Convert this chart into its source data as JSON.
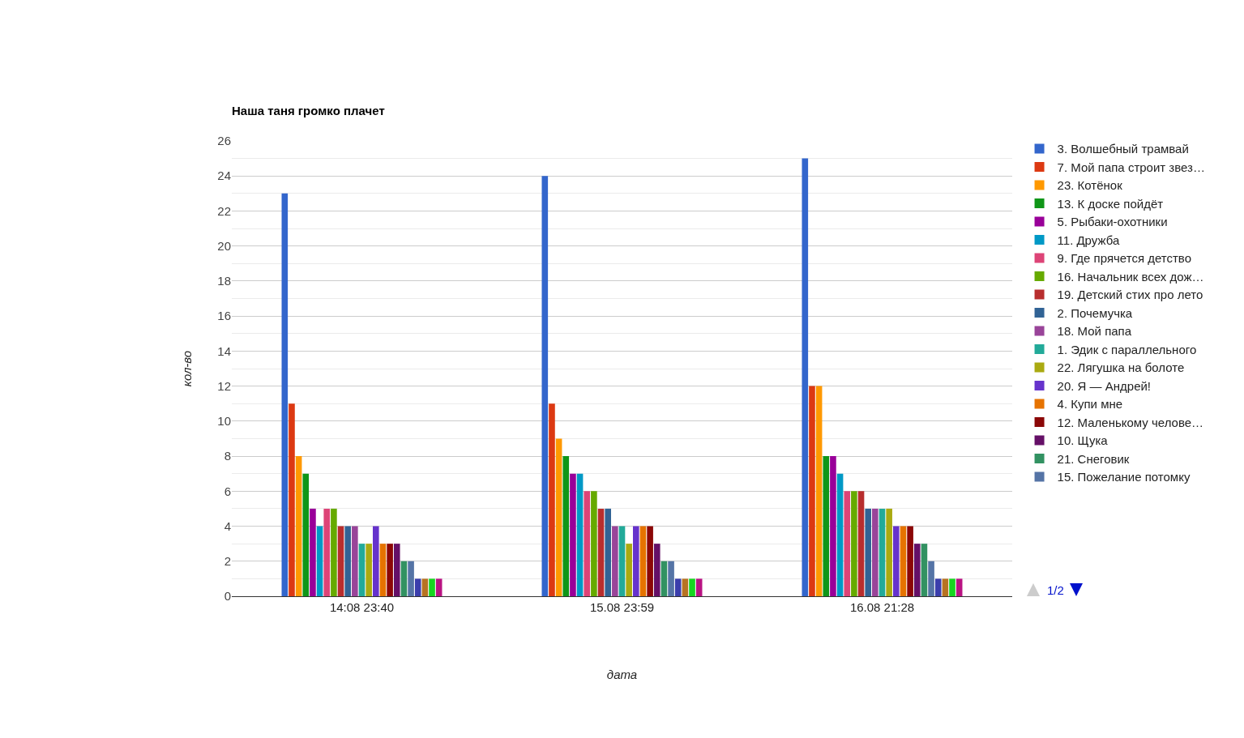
{
  "chart_data": {
    "type": "bar",
    "title": "Наша таня громко плачет",
    "xlabel": "дата",
    "ylabel": "кол-во",
    "categories": [
      "14:08 23:40",
      "15.08 23:59",
      "16.08 21:28"
    ],
    "series": [
      {
        "name": "3. Волшебный трамвай",
        "color": "#3366cc",
        "values": [
          23,
          24,
          25
        ]
      },
      {
        "name": "7. Мой папа строит звез…",
        "color": "#dc3912",
        "values": [
          11,
          11,
          12
        ]
      },
      {
        "name": "23. Котёнок",
        "color": "#ff9900",
        "values": [
          8,
          9,
          12
        ]
      },
      {
        "name": "13. К доске пойдёт",
        "color": "#109618",
        "values": [
          7,
          8,
          8
        ]
      },
      {
        "name": "5. Рыбаки-охотники",
        "color": "#990099",
        "values": [
          5,
          7,
          8
        ]
      },
      {
        "name": "11. Дружба",
        "color": "#0099c6",
        "values": [
          4,
          7,
          7
        ]
      },
      {
        "name": "9. Где прячется детство",
        "color": "#dd4477",
        "values": [
          5,
          6,
          6
        ]
      },
      {
        "name": "16. Начальник всех дож…",
        "color": "#66aa00",
        "values": [
          5,
          6,
          6
        ]
      },
      {
        "name": "19. Детский стих про лето",
        "color": "#b82e2e",
        "values": [
          4,
          5,
          6
        ]
      },
      {
        "name": "2. Почемучка",
        "color": "#316395",
        "values": [
          4,
          5,
          5
        ]
      },
      {
        "name": "18. Мой папа",
        "color": "#994499",
        "values": [
          4,
          4,
          5
        ]
      },
      {
        "name": "1. Эдик с параллельного",
        "color": "#22aa99",
        "values": [
          3,
          4,
          5
        ]
      },
      {
        "name": "22. Лягушка на болоте",
        "color": "#aaaa11",
        "values": [
          3,
          3,
          5
        ]
      },
      {
        "name": "20. Я — Андрей!",
        "color": "#6633cc",
        "values": [
          4,
          4,
          4
        ]
      },
      {
        "name": "4. Купи мне",
        "color": "#e67300",
        "values": [
          3,
          4,
          4
        ]
      },
      {
        "name": "12. Маленькому челове…",
        "color": "#8b0707",
        "values": [
          3,
          4,
          4
        ]
      },
      {
        "name": "10. Щука",
        "color": "#651067",
        "values": [
          3,
          3,
          3
        ]
      },
      {
        "name": "21. Снеговик",
        "color": "#329262",
        "values": [
          2,
          2,
          3
        ]
      },
      {
        "name": "15. Пожелание потомку",
        "color": "#5574a6",
        "values": [
          2,
          2,
          2
        ]
      },
      {
        "color": "#3b3eac",
        "values": [
          1,
          1,
          1
        ]
      },
      {
        "color": "#b77322",
        "values": [
          1,
          1,
          1
        ]
      },
      {
        "color": "#16d620",
        "values": [
          1,
          1,
          1
        ]
      },
      {
        "color": "#b91383",
        "values": [
          1,
          1,
          1
        ]
      }
    ],
    "ylim": [
      0,
      26
    ],
    "yticks": [
      0,
      {
        "value": 1,
        "label": null
      },
      2,
      {
        "value": 3,
        "label": null
      },
      4,
      {
        "value": 5,
        "label": null
      },
      6,
      {
        "value": 7,
        "label": null
      },
      8,
      {
        "value": 9,
        "label": null
      },
      10,
      {
        "value": 11,
        "label": null
      },
      12,
      {
        "value": 13,
        "label": null
      },
      14,
      {
        "value": 15,
        "label": null
      },
      16,
      {
        "value": 17,
        "label": null
      },
      18,
      {
        "value": 19,
        "label": null
      },
      20,
      {
        "value": 21,
        "label": null
      },
      22,
      {
        "value": 23,
        "label": null
      },
      24,
      {
        "value": 25,
        "label": null
      },
      26
    ],
    "grid": "y",
    "legend": "right",
    "annotations": [
      "1/2"
    ]
  }
}
